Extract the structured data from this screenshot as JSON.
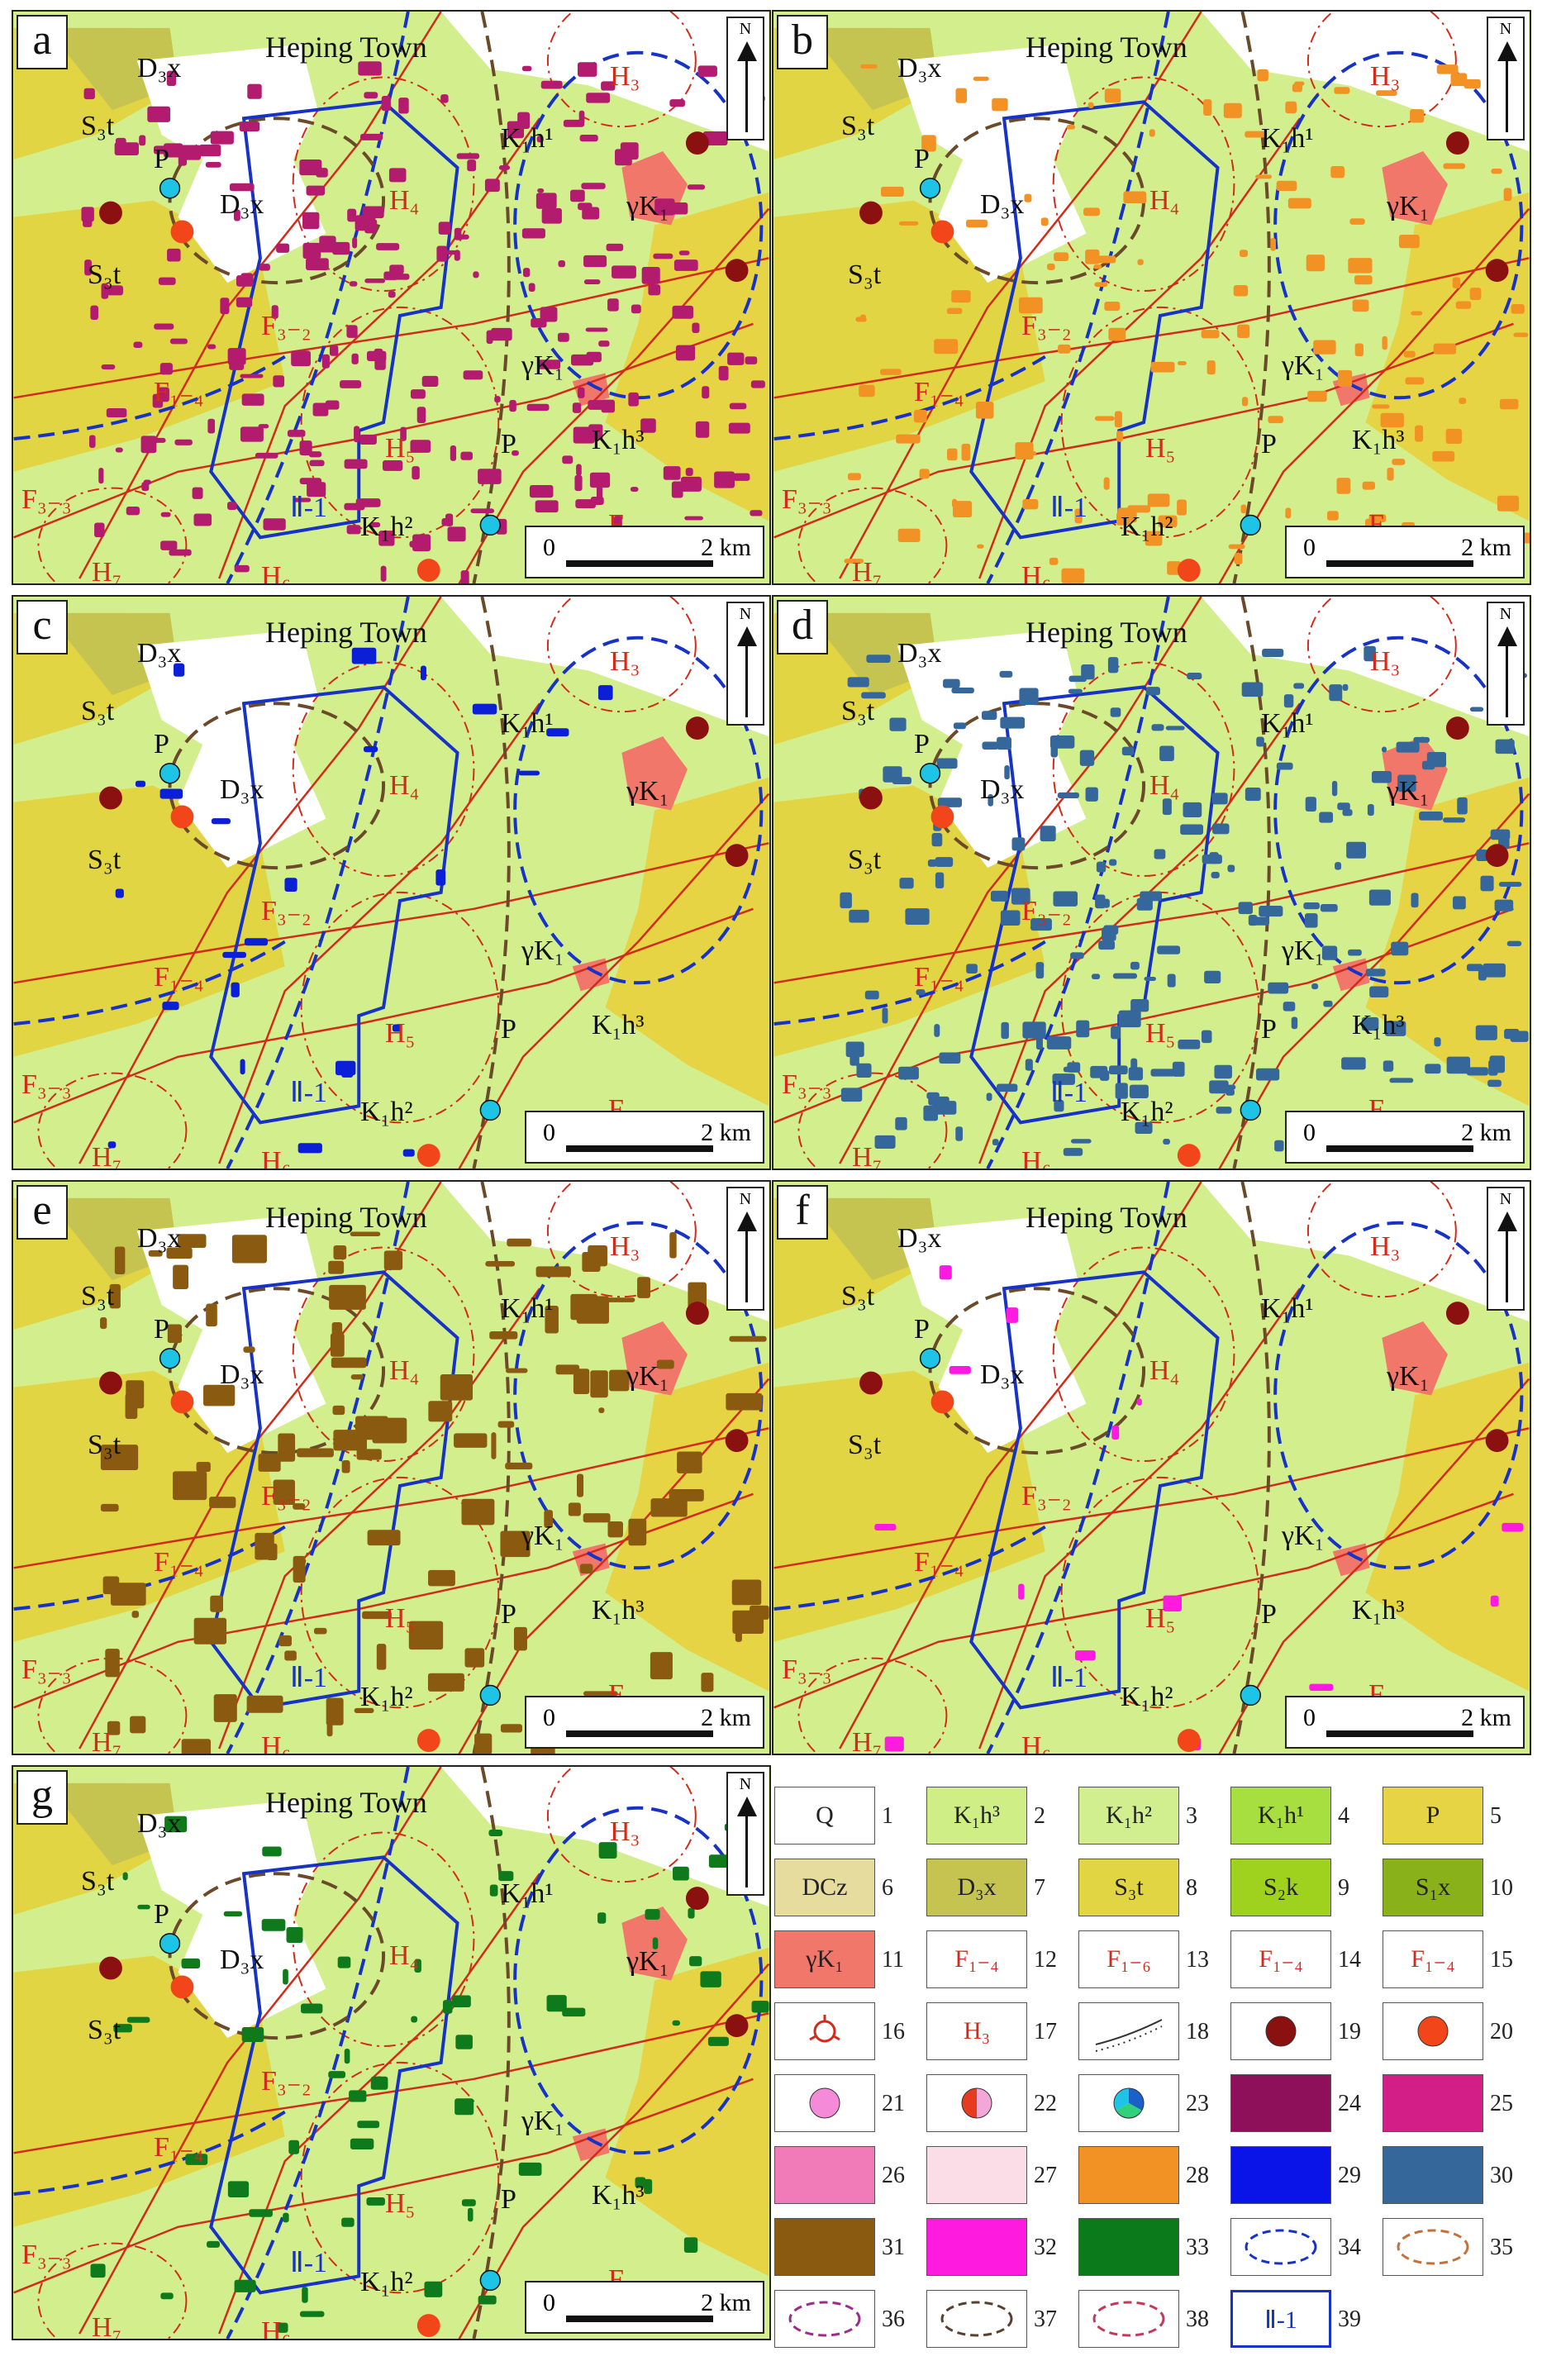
{
  "panels": [
    {
      "id": "a",
      "town": "Heping Town",
      "scale_zero": "0",
      "scale_km": "2 km",
      "north": "N",
      "overlay_color": "#b21b6e"
    },
    {
      "id": "b",
      "town": "Heping Town",
      "scale_zero": "0",
      "scale_km": "2 km",
      "north": "N",
      "overlay_color": "#f39224"
    },
    {
      "id": "c",
      "town": "Heping Town",
      "scale_zero": "0",
      "scale_km": "2 km",
      "north": "N",
      "overlay_color": "#0a1fd6"
    },
    {
      "id": "d",
      "town": "Heping Town",
      "scale_zero": "0",
      "scale_km": "2 km",
      "north": "N",
      "overlay_color": "#35679a"
    },
    {
      "id": "e",
      "town": "Heping Town",
      "scale_zero": "0",
      "scale_km": "2 km",
      "north": "N",
      "overlay_color": "#8b5a11"
    },
    {
      "id": "f",
      "town": "Heping Town",
      "scale_zero": "0",
      "scale_km": "2 km",
      "north": "N",
      "overlay_color": "#ff1ae0"
    },
    {
      "id": "g",
      "town": "Heping Town",
      "scale_zero": "0",
      "scale_km": "2 km",
      "north": "N",
      "overlay_color": "#0f7a1c"
    }
  ],
  "map_labels": {
    "d3x": "D₃x",
    "s3t": "S₃t",
    "p": "P",
    "k1h1": "K₁h¹",
    "k1h2": "K₁h²",
    "k1h3": "K₁h³",
    "gk1": "γK₁",
    "h3": "H₃",
    "h4": "H₄",
    "h5": "H₅",
    "h6": "H₆",
    "h7": "H₇",
    "f32": "F₃₋₂",
    "f33": "F₃₋₃",
    "f14": "F₁₋₄",
    "f16": "F₁₋₆",
    "ii1": "Ⅱ-1"
  },
  "legend": [
    {
      "n": "1",
      "text": "Q",
      "color": "#ffffff"
    },
    {
      "n": "2",
      "text": "K₁h³",
      "color": "#cfee86"
    },
    {
      "n": "3",
      "text": "K₁h²",
      "color": "#d2ef8f"
    },
    {
      "n": "4",
      "text": "K₁h¹",
      "color": "#a6df3f"
    },
    {
      "n": "5",
      "text": "P",
      "color": "#e6d444"
    },
    {
      "n": "6",
      "text": "DCz",
      "color": "#e6dc9e"
    },
    {
      "n": "7",
      "text": "D₃x",
      "color": "#c6c451"
    },
    {
      "n": "8",
      "text": "S₃t",
      "color": "#e2d544"
    },
    {
      "n": "9",
      "text": "S₂k",
      "color": "#9ed21f"
    },
    {
      "n": "10",
      "text": "S₁x",
      "color": "#88b11a"
    },
    {
      "n": "11",
      "text": "γK₁",
      "color": "#f0776a"
    },
    {
      "n": "12",
      "text": "F₁₋₄",
      "color": "#ffffff"
    },
    {
      "n": "13",
      "text": "F₁₋₆",
      "color": "#ffffff"
    },
    {
      "n": "14",
      "text": "F₁₋₄",
      "color": "#ffffff"
    },
    {
      "n": "15",
      "text": "F₁₋₄",
      "color": "#ffffff"
    },
    {
      "n": "16",
      "text": "",
      "color": "#ffffff"
    },
    {
      "n": "17",
      "text": "H₃",
      "color": "#ffffff"
    },
    {
      "n": "18",
      "text": "",
      "color": "#ffffff"
    },
    {
      "n": "19",
      "text": "",
      "color": "#ffffff"
    },
    {
      "n": "20",
      "text": "",
      "color": "#ffffff"
    },
    {
      "n": "21",
      "text": "",
      "color": "#ffffff"
    },
    {
      "n": "22",
      "text": "",
      "color": "#ffffff"
    },
    {
      "n": "23",
      "text": "",
      "color": "#ffffff"
    },
    {
      "n": "24",
      "text": "",
      "color": "#8e0f5a"
    },
    {
      "n": "25",
      "text": "",
      "color": "#d21e86"
    },
    {
      "n": "26",
      "text": "",
      "color": "#f07bb8"
    },
    {
      "n": "27",
      "text": "",
      "color": "#fbdde8"
    },
    {
      "n": "28",
      "text": "",
      "color": "#f39224"
    },
    {
      "n": "29",
      "text": "",
      "color": "#0a14e8"
    },
    {
      "n": "30",
      "text": "",
      "color": "#35679a"
    },
    {
      "n": "31",
      "text": "",
      "color": "#8b5a11"
    },
    {
      "n": "32",
      "text": "",
      "color": "#ff1ae0"
    },
    {
      "n": "33",
      "text": "",
      "color": "#0a7a1a"
    },
    {
      "n": "34",
      "text": "",
      "color": "#ffffff"
    },
    {
      "n": "35",
      "text": "",
      "color": "#ffffff"
    },
    {
      "n": "36",
      "text": "",
      "color": "#ffffff"
    },
    {
      "n": "37",
      "text": "",
      "color": "#ffffff"
    },
    {
      "n": "38",
      "text": "",
      "color": "#ffffff"
    },
    {
      "n": "39",
      "text": "Ⅱ-1",
      "color": "#ffffff"
    }
  ]
}
